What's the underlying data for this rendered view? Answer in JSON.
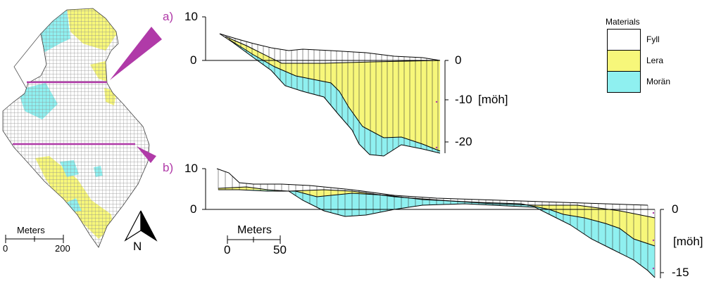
{
  "panels": [
    {
      "id": "a",
      "label": "a)"
    },
    {
      "id": "b",
      "label": "b)"
    }
  ],
  "map": {
    "scale_title": "Meters",
    "scale_ticks": [
      "0",
      "200"
    ],
    "north_label": "N"
  },
  "section_a": {
    "upper_ticks": [
      "10",
      "0"
    ],
    "right_ticks": [
      "0",
      "-10",
      "-20"
    ],
    "unit": "[möh]"
  },
  "section_b": {
    "upper_ticks": [
      "10",
      "0"
    ],
    "right_ticks": [
      "0",
      "-15"
    ],
    "unit": "[möh]",
    "scale_title": "Meters",
    "scale_ticks": [
      "0",
      "50"
    ]
  },
  "legend": {
    "title": "Materials",
    "items": [
      {
        "label": "Fyll",
        "color": "#ffffff"
      },
      {
        "label": "Lera",
        "color": "#f7f77a"
      },
      {
        "label": "Morän",
        "color": "#8ff0f0"
      }
    ]
  },
  "colors": {
    "fill": "#ffffff",
    "clay": "#f7f77a",
    "moraine": "#8ff0f0",
    "section_line": "#b03aa8",
    "grid": "#8a8a8a"
  }
}
